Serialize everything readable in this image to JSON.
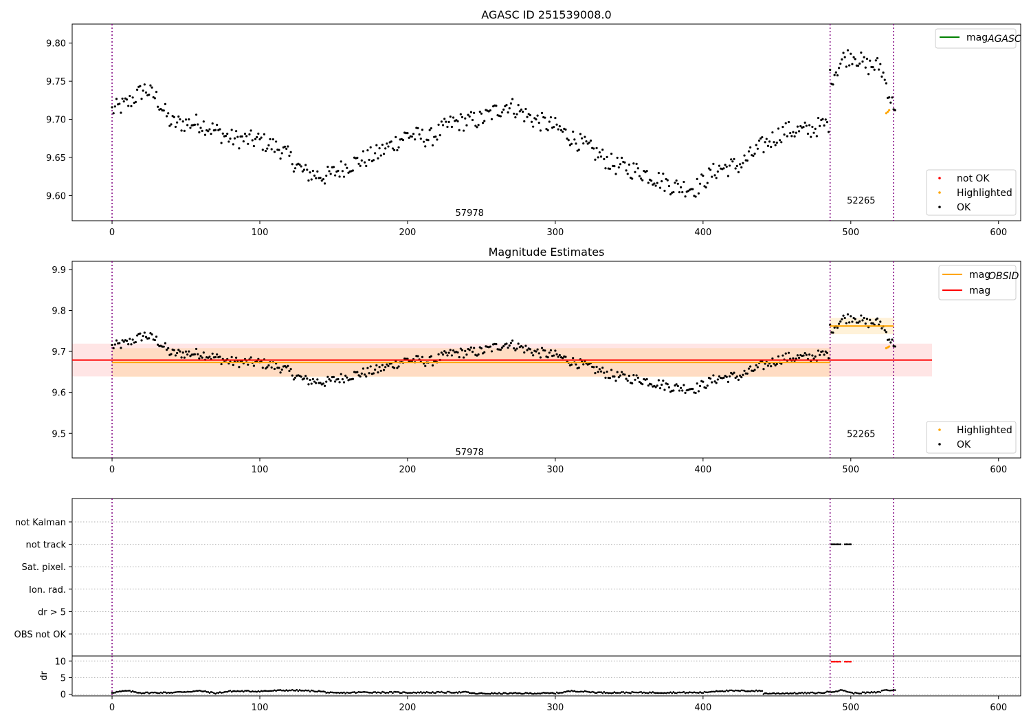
{
  "chart_data": [
    {
      "type": "scatter",
      "title": "AGASC ID 251539008.0",
      "xlim": [
        -27,
        615
      ],
      "ylim": [
        9.567,
        9.825
      ],
      "xticks": [
        0,
        100,
        200,
        300,
        400,
        500,
        600
      ],
      "yticks": [
        9.6,
        9.65,
        9.7,
        9.75,
        9.8
      ],
      "ytick_labels": [
        "9.60",
        "9.65",
        "9.70",
        "9.75",
        "9.80"
      ],
      "vlines": [
        0,
        486,
        529
      ],
      "obsid_labels": [
        {
          "x": 242,
          "y": 9.578,
          "text": "57978"
        },
        {
          "x": 507,
          "y": 9.594,
          "text": "52265"
        }
      ],
      "legend_top": {
        "position": "top-right",
        "entries": [
          {
            "label": "mag",
            "sub": "AGASC",
            "color": "#008000"
          }
        ]
      },
      "legend_bottom": {
        "position": "bottom-right",
        "entries": [
          {
            "label": "not OK",
            "color": "#ff0000"
          },
          {
            "label": "Highlighted",
            "color": "#ffa500"
          },
          {
            "label": "OK",
            "color": "#000000"
          }
        ]
      },
      "series_ok": {
        "name": "OK",
        "x_range": [
          0,
          530
        ],
        "shape": [
          [
            0,
            9.712
          ],
          [
            10,
            9.72
          ],
          [
            22,
            9.74
          ],
          [
            30,
            9.728
          ],
          [
            40,
            9.695
          ],
          [
            60,
            9.695
          ],
          [
            80,
            9.675
          ],
          [
            100,
            9.672
          ],
          [
            115,
            9.66
          ],
          [
            130,
            9.63
          ],
          [
            145,
            9.625
          ],
          [
            160,
            9.64
          ],
          [
            180,
            9.655
          ],
          [
            200,
            9.68
          ],
          [
            215,
            9.675
          ],
          [
            230,
            9.695
          ],
          [
            250,
            9.7
          ],
          [
            268,
            9.72
          ],
          [
            285,
            9.7
          ],
          [
            300,
            9.69
          ],
          [
            320,
            9.665
          ],
          [
            340,
            9.64
          ],
          [
            360,
            9.63
          ],
          [
            380,
            9.612
          ],
          [
            395,
            9.61
          ],
          [
            410,
            9.635
          ],
          [
            425,
            9.64
          ],
          [
            440,
            9.665
          ],
          [
            455,
            9.685
          ],
          [
            470,
            9.685
          ],
          [
            485,
            9.695
          ],
          [
            486,
            9.754
          ],
          [
            487,
            9.755
          ],
          [
            495,
            9.78
          ],
          [
            502,
            9.785
          ],
          [
            510,
            9.77
          ],
          [
            520,
            9.77
          ],
          [
            525,
            9.74
          ],
          [
            528,
            9.72
          ]
        ]
      },
      "series_highlighted": {
        "name": "Highlighted",
        "x": [
          524,
          525,
          526
        ],
        "y": [
          9.708,
          9.71,
          9.712
        ]
      }
    },
    {
      "type": "scatter",
      "title": "Magnitude Estimates",
      "xlim": [
        -27,
        615
      ],
      "ylim": [
        9.44,
        9.92
      ],
      "xticks": [
        0,
        100,
        200,
        300,
        400,
        500,
        600
      ],
      "yticks": [
        9.5,
        9.6,
        9.7,
        9.8,
        9.9
      ],
      "ytick_labels": [
        "9.5",
        "9.6",
        "9.7",
        "9.8",
        "9.9"
      ],
      "vlines": [
        0,
        486,
        529
      ],
      "obsid_labels": [
        {
          "x": 242,
          "y": 9.455,
          "text": "57978"
        },
        {
          "x": 507,
          "y": 9.5,
          "text": "52265"
        }
      ],
      "mag_obsid": [
        {
          "x": [
            0,
            486
          ],
          "y": 9.673,
          "band": [
            9.638,
            9.708
          ]
        },
        {
          "x": [
            486,
            529
          ],
          "y": 9.762,
          "band": [
            9.742,
            9.782
          ]
        }
      ],
      "mag": {
        "x": [
          -27,
          555
        ],
        "y": 9.679,
        "band": [
          9.639,
          9.719
        ]
      },
      "legend_top": {
        "position": "top-right",
        "entries": [
          {
            "label": "mag",
            "sub": "OBSID",
            "color": "#ffa500"
          },
          {
            "label": "mag",
            "sub": "",
            "color": "#ff0000"
          }
        ]
      },
      "legend_bottom": {
        "position": "bottom-right",
        "entries": [
          {
            "label": "Highlighted",
            "color": "#ffa500"
          },
          {
            "label": "OK",
            "color": "#000000"
          }
        ]
      }
    },
    {
      "type": "scatter",
      "xlim": [
        -27,
        615
      ],
      "flag_labels": [
        "not Kalman",
        "not track",
        "Sat. pixel.",
        "Ion. rad.",
        "dr > 5",
        "OBS not OK"
      ],
      "flag_points": {
        "flag": "not track",
        "x_ranges": [
          [
            487,
            493
          ],
          [
            496,
            500
          ]
        ]
      },
      "vlines": [
        0,
        486,
        529
      ]
    },
    {
      "type": "scatter",
      "xlim": [
        -27,
        615
      ],
      "ylim": [
        -0.5,
        11.5
      ],
      "ylabel": "dr",
      "yticks": [
        0,
        5,
        10
      ],
      "ytick_labels": [
        "0",
        "5",
        "10"
      ],
      "xticks": [
        0,
        100,
        200,
        300,
        400,
        500,
        600
      ],
      "vlines": [
        0,
        486,
        529
      ],
      "capped_points": {
        "value": 10,
        "x_ranges": [
          [
            487,
            493
          ],
          [
            496,
            500
          ]
        ],
        "color": "#ff0000"
      },
      "series_dr": {
        "x_range": [
          0,
          530
        ],
        "shape": [
          [
            0,
            0.5
          ],
          [
            10,
            1
          ],
          [
            20,
            0.4
          ],
          [
            40,
            0.5
          ],
          [
            60,
            1
          ],
          [
            70,
            0.3
          ],
          [
            80,
            0.9
          ],
          [
            100,
            0.9
          ],
          [
            120,
            1.2
          ],
          [
            140,
            0.9
          ],
          [
            150,
            0.3
          ],
          [
            170,
            0.6
          ],
          [
            200,
            0.5
          ],
          [
            240,
            0.6
          ],
          [
            245,
            0.2
          ],
          [
            300,
            0.3
          ],
          [
            312,
            1
          ],
          [
            330,
            0.5
          ],
          [
            400,
            0.5
          ],
          [
            410,
            1
          ],
          [
            440,
            1
          ],
          [
            441,
            0.2
          ],
          [
            480,
            0.4
          ],
          [
            485,
            0.7
          ],
          [
            495,
            1.2
          ],
          [
            501,
            0.3
          ],
          [
            520,
            0.6
          ],
          [
            521,
            1.2
          ],
          [
            529,
            1.2
          ]
        ]
      }
    }
  ]
}
